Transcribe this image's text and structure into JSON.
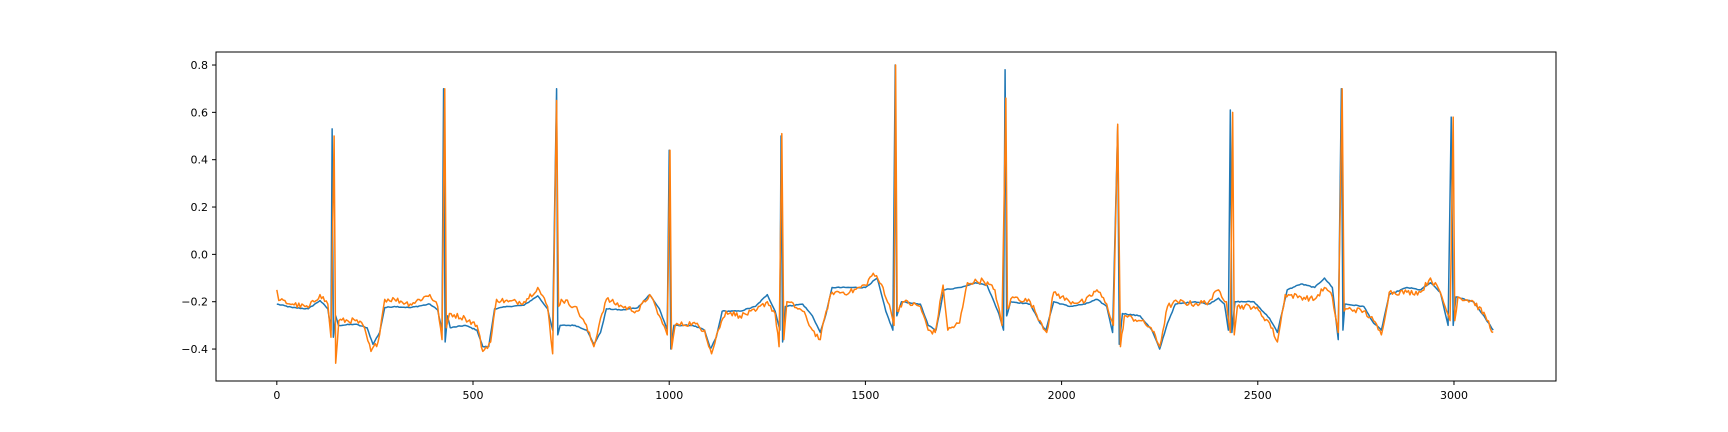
{
  "chart_data": {
    "type": "line",
    "title": "",
    "xlabel": "",
    "ylabel": "",
    "xlim": [
      -155,
      3260
    ],
    "ylim": [
      -0.535,
      0.855
    ],
    "xticks": [
      0,
      500,
      1000,
      1500,
      2000,
      2500,
      3000
    ],
    "xtick_labels": [
      "0",
      "500",
      "1000",
      "1500",
      "2000",
      "2500",
      "3000"
    ],
    "yticks": [
      -0.4,
      -0.2,
      0.0,
      0.2,
      0.4,
      0.6,
      0.8
    ],
    "ytick_labels": [
      "−0.4",
      "−0.2",
      "0.0",
      "0.2",
      "0.4",
      "0.6",
      "0.8"
    ],
    "grid": false,
    "legend": "none",
    "n_points": 3100,
    "series": [
      {
        "color": "#1f77b4",
        "points": [
          [
            0,
            -0.21
          ],
          [
            40,
            -0.225
          ],
          [
            80,
            -0.23
          ],
          [
            110,
            -0.195
          ],
          [
            130,
            -0.23
          ],
          [
            138,
            -0.32
          ],
          [
            141,
            0.53
          ],
          [
            144,
            -0.35
          ],
          [
            150,
            -0.26
          ],
          [
            157,
            -0.3
          ],
          [
            200,
            -0.295
          ],
          [
            230,
            -0.31
          ],
          [
            245,
            -0.38
          ],
          [
            262,
            -0.33
          ],
          [
            275,
            -0.225
          ],
          [
            300,
            -0.22
          ],
          [
            340,
            -0.225
          ],
          [
            390,
            -0.21
          ],
          [
            410,
            -0.235
          ],
          [
            421,
            -0.32
          ],
          [
            425,
            0.7
          ],
          [
            429,
            -0.37
          ],
          [
            435,
            -0.26
          ],
          [
            442,
            -0.31
          ],
          [
            480,
            -0.3
          ],
          [
            510,
            -0.32
          ],
          [
            525,
            -0.39
          ],
          [
            540,
            -0.39
          ],
          [
            555,
            -0.23
          ],
          [
            590,
            -0.22
          ],
          [
            630,
            -0.215
          ],
          [
            665,
            -0.175
          ],
          [
            690,
            -0.23
          ],
          [
            703,
            -0.32
          ],
          [
            713,
            0.7
          ],
          [
            716,
            -0.34
          ],
          [
            722,
            -0.3
          ],
          [
            760,
            -0.3
          ],
          [
            790,
            -0.32
          ],
          [
            808,
            -0.38
          ],
          [
            825,
            -0.33
          ],
          [
            840,
            -0.23
          ],
          [
            880,
            -0.235
          ],
          [
            920,
            -0.225
          ],
          [
            950,
            -0.17
          ],
          [
            975,
            -0.23
          ],
          [
            995,
            -0.32
          ],
          [
            1000,
            0.44
          ],
          [
            1004,
            -0.4
          ],
          [
            1012,
            -0.3
          ],
          [
            1060,
            -0.3
          ],
          [
            1090,
            -0.32
          ],
          [
            1105,
            -0.4
          ],
          [
            1120,
            -0.35
          ],
          [
            1135,
            -0.24
          ],
          [
            1180,
            -0.24
          ],
          [
            1220,
            -0.22
          ],
          [
            1250,
            -0.17
          ],
          [
            1270,
            -0.24
          ],
          [
            1282,
            -0.32
          ],
          [
            1285,
            0.5
          ],
          [
            1289,
            -0.37
          ],
          [
            1296,
            -0.22
          ],
          [
            1340,
            -0.21
          ],
          [
            1365,
            -0.26
          ],
          [
            1385,
            -0.33
          ],
          [
            1400,
            -0.25
          ],
          [
            1415,
            -0.14
          ],
          [
            1460,
            -0.14
          ],
          [
            1500,
            -0.14
          ],
          [
            1530,
            -0.1
          ],
          [
            1552,
            -0.24
          ],
          [
            1570,
            -0.32
          ],
          [
            1576,
            0.8
          ],
          [
            1580,
            -0.26
          ],
          [
            1592,
            -0.2
          ],
          [
            1640,
            -0.21
          ],
          [
            1660,
            -0.3
          ],
          [
            1680,
            -0.32
          ],
          [
            1700,
            -0.15
          ],
          [
            1740,
            -0.14
          ],
          [
            1780,
            -0.12
          ],
          [
            1810,
            -0.13
          ],
          [
            1840,
            -0.25
          ],
          [
            1852,
            -0.32
          ],
          [
            1856,
            0.78
          ],
          [
            1860,
            -0.26
          ],
          [
            1870,
            -0.2
          ],
          [
            1920,
            -0.21
          ],
          [
            1945,
            -0.29
          ],
          [
            1960,
            -0.32
          ],
          [
            1980,
            -0.2
          ],
          [
            2020,
            -0.22
          ],
          [
            2060,
            -0.21
          ],
          [
            2090,
            -0.19
          ],
          [
            2115,
            -0.22
          ],
          [
            2130,
            -0.33
          ],
          [
            2143,
            0.54
          ],
          [
            2147,
            -0.38
          ],
          [
            2155,
            -0.25
          ],
          [
            2200,
            -0.26
          ],
          [
            2230,
            -0.32
          ],
          [
            2250,
            -0.4
          ],
          [
            2270,
            -0.29
          ],
          [
            2290,
            -0.21
          ],
          [
            2340,
            -0.2
          ],
          [
            2375,
            -0.21
          ],
          [
            2400,
            -0.185
          ],
          [
            2415,
            -0.21
          ],
          [
            2425,
            -0.32
          ],
          [
            2430,
            0.61
          ],
          [
            2434,
            -0.33
          ],
          [
            2442,
            -0.2
          ],
          [
            2490,
            -0.2
          ],
          [
            2530,
            -0.27
          ],
          [
            2550,
            -0.33
          ],
          [
            2575,
            -0.15
          ],
          [
            2610,
            -0.125
          ],
          [
            2645,
            -0.14
          ],
          [
            2670,
            -0.1
          ],
          [
            2690,
            -0.14
          ],
          [
            2705,
            -0.36
          ],
          [
            2713,
            0.7
          ],
          [
            2717,
            -0.32
          ],
          [
            2722,
            -0.21
          ],
          [
            2770,
            -0.22
          ],
          [
            2795,
            -0.29
          ],
          [
            2815,
            -0.32
          ],
          [
            2835,
            -0.17
          ],
          [
            2880,
            -0.14
          ],
          [
            2915,
            -0.15
          ],
          [
            2940,
            -0.12
          ],
          [
            2965,
            -0.16
          ],
          [
            2985,
            -0.3
          ],
          [
            2993,
            0.58
          ],
          [
            2998,
            -0.3
          ],
          [
            3005,
            -0.18
          ],
          [
            3050,
            -0.2
          ],
          [
            3080,
            -0.27
          ],
          [
            3100,
            -0.32
          ]
        ]
      },
      {
        "color": "#ff7f0e",
        "points": [
          [
            0,
            -0.15
          ],
          [
            5,
            -0.195
          ],
          [
            40,
            -0.21
          ],
          [
            80,
            -0.225
          ],
          [
            110,
            -0.17
          ],
          [
            130,
            -0.21
          ],
          [
            138,
            -0.35
          ],
          [
            146,
            0.5
          ],
          [
            150,
            -0.46
          ],
          [
            158,
            -0.28
          ],
          [
            200,
            -0.28
          ],
          [
            220,
            -0.3
          ],
          [
            240,
            -0.41
          ],
          [
            258,
            -0.37
          ],
          [
            275,
            -0.19
          ],
          [
            300,
            -0.19
          ],
          [
            340,
            -0.21
          ],
          [
            390,
            -0.17
          ],
          [
            410,
            -0.22
          ],
          [
            421,
            -0.36
          ],
          [
            428,
            0.7
          ],
          [
            432,
            -0.31
          ],
          [
            440,
            -0.25
          ],
          [
            480,
            -0.27
          ],
          [
            510,
            -0.3
          ],
          [
            525,
            -0.41
          ],
          [
            545,
            -0.37
          ],
          [
            560,
            -0.19
          ],
          [
            590,
            -0.2
          ],
          [
            630,
            -0.2
          ],
          [
            665,
            -0.14
          ],
          [
            690,
            -0.22
          ],
          [
            703,
            -0.42
          ],
          [
            713,
            0.65
          ],
          [
            718,
            -0.22
          ],
          [
            725,
            -0.19
          ],
          [
            760,
            -0.22
          ],
          [
            785,
            -0.29
          ],
          [
            808,
            -0.39
          ],
          [
            825,
            -0.27
          ],
          [
            840,
            -0.19
          ],
          [
            880,
            -0.22
          ],
          [
            920,
            -0.24
          ],
          [
            950,
            -0.17
          ],
          [
            975,
            -0.26
          ],
          [
            995,
            -0.34
          ],
          [
            1002,
            0.44
          ],
          [
            1006,
            -0.4
          ],
          [
            1015,
            -0.3
          ],
          [
            1060,
            -0.29
          ],
          [
            1090,
            -0.32
          ],
          [
            1108,
            -0.42
          ],
          [
            1125,
            -0.32
          ],
          [
            1145,
            -0.24
          ],
          [
            1180,
            -0.26
          ],
          [
            1220,
            -0.24
          ],
          [
            1250,
            -0.2
          ],
          [
            1270,
            -0.25
          ],
          [
            1280,
            -0.39
          ],
          [
            1287,
            0.51
          ],
          [
            1292,
            -0.36
          ],
          [
            1300,
            -0.2
          ],
          [
            1340,
            -0.24
          ],
          [
            1365,
            -0.32
          ],
          [
            1385,
            -0.36
          ],
          [
            1400,
            -0.24
          ],
          [
            1415,
            -0.16
          ],
          [
            1460,
            -0.16
          ],
          [
            1500,
            -0.13
          ],
          [
            1520,
            -0.08
          ],
          [
            1545,
            -0.14
          ],
          [
            1565,
            -0.24
          ],
          [
            1573,
            -0.3
          ],
          [
            1577,
            0.8
          ],
          [
            1581,
            -0.24
          ],
          [
            1595,
            -0.2
          ],
          [
            1640,
            -0.22
          ],
          [
            1660,
            -0.32
          ],
          [
            1678,
            -0.33
          ],
          [
            1698,
            -0.13
          ],
          [
            1710,
            -0.32
          ],
          [
            1740,
            -0.29
          ],
          [
            1760,
            -0.12
          ],
          [
            1800,
            -0.11
          ],
          [
            1830,
            -0.15
          ],
          [
            1848,
            -0.3
          ],
          [
            1858,
            0.66
          ],
          [
            1862,
            -0.23
          ],
          [
            1875,
            -0.18
          ],
          [
            1920,
            -0.2
          ],
          [
            1945,
            -0.28
          ],
          [
            1962,
            -0.33
          ],
          [
            1980,
            -0.16
          ],
          [
            2020,
            -0.2
          ],
          [
            2060,
            -0.2
          ],
          [
            2090,
            -0.15
          ],
          [
            2115,
            -0.21
          ],
          [
            2132,
            -0.3
          ],
          [
            2143,
            0.55
          ],
          [
            2150,
            -0.39
          ],
          [
            2160,
            -0.26
          ],
          [
            2200,
            -0.28
          ],
          [
            2228,
            -0.31
          ],
          [
            2250,
            -0.39
          ],
          [
            2270,
            -0.22
          ],
          [
            2295,
            -0.2
          ],
          [
            2340,
            -0.21
          ],
          [
            2375,
            -0.2
          ],
          [
            2400,
            -0.15
          ],
          [
            2420,
            -0.2
          ],
          [
            2430,
            -0.33
          ],
          [
            2436,
            0.6
          ],
          [
            2440,
            -0.34
          ],
          [
            2448,
            -0.22
          ],
          [
            2490,
            -0.22
          ],
          [
            2530,
            -0.29
          ],
          [
            2550,
            -0.37
          ],
          [
            2570,
            -0.17
          ],
          [
            2610,
            -0.18
          ],
          [
            2645,
            -0.19
          ],
          [
            2670,
            -0.14
          ],
          [
            2690,
            -0.18
          ],
          [
            2705,
            -0.33
          ],
          [
            2715,
            0.7
          ],
          [
            2720,
            -0.24
          ],
          [
            2730,
            -0.23
          ],
          [
            2770,
            -0.24
          ],
          [
            2795,
            -0.28
          ],
          [
            2815,
            -0.34
          ],
          [
            2835,
            -0.16
          ],
          [
            2880,
            -0.16
          ],
          [
            2915,
            -0.16
          ],
          [
            2940,
            -0.1
          ],
          [
            2965,
            -0.16
          ],
          [
            2990,
            -0.28
          ],
          [
            2998,
            0.58
          ],
          [
            3002,
            -0.28
          ],
          [
            3010,
            -0.18
          ],
          [
            3050,
            -0.2
          ],
          [
            3080,
            -0.26
          ],
          [
            3100,
            -0.33
          ]
        ]
      }
    ]
  }
}
